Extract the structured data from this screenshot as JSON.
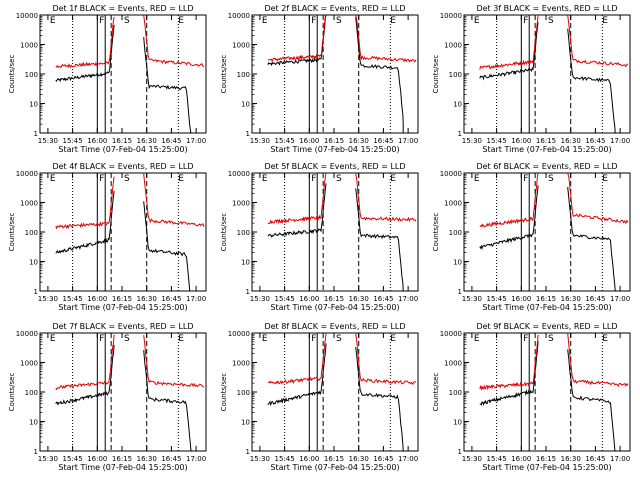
{
  "colors": {
    "events": "#000000",
    "lld": "#e00000",
    "frame": "#000000"
  },
  "chart_data": [
    {
      "type": "line",
      "title": "Det 1f BLACK = Events, RED = LLD",
      "xlabel": "Start Time (07-Feb-04 15:25:00)",
      "ylabel": "Counts/sec",
      "yscale": "log",
      "ylim": [
        1,
        10000
      ],
      "xticks": [
        "15:30",
        "15:45",
        "16:00",
        "16:15",
        "16:30",
        "16:45",
        "17:00"
      ],
      "yticks": [
        "1",
        "10",
        "100",
        "1000",
        "10000"
      ],
      "region_marks": [
        {
          "label": "E",
          "x_min": 15.55
        },
        {
          "label": "F",
          "x_min": 16.05
        },
        {
          "label": "S",
          "x_min": 16.3
        },
        {
          "label": "E",
          "x_min": 16.85
        }
      ],
      "series": [
        {
          "name": "Events",
          "color": "#000000",
          "base": 60,
          "pre_end": 115,
          "post_start": 40,
          "post_end": 30
        },
        {
          "name": "LLD",
          "color": "#e00000",
          "base": 180,
          "pre_end": 240,
          "post_start": 300,
          "post_end": 200
        }
      ]
    },
    {
      "type": "line",
      "title": "Det 2f BLACK = Events, RED = LLD",
      "xlabel": "Start Time (07-Feb-04 15:25:00)",
      "ylabel": "Counts/sec",
      "yscale": "log",
      "ylim": [
        1,
        10000
      ],
      "xticks": [
        "15:30",
        "15:45",
        "16:00",
        "16:15",
        "16:30",
        "16:45",
        "17:00"
      ],
      "yticks": [
        "1",
        "10",
        "100",
        "1000",
        "10000"
      ],
      "region_marks": [
        {
          "label": "E",
          "x_min": 15.55
        },
        {
          "label": "F",
          "x_min": 16.05
        },
        {
          "label": "S",
          "x_min": 16.3
        },
        {
          "label": "E",
          "x_min": 16.85
        }
      ],
      "series": [
        {
          "name": "Events",
          "color": "#000000",
          "base": 220,
          "pre_end": 320,
          "post_start": 200,
          "post_end": 150
        },
        {
          "name": "LLD",
          "color": "#e00000",
          "base": 300,
          "pre_end": 420,
          "post_start": 380,
          "post_end": 280
        }
      ]
    },
    {
      "type": "line",
      "title": "Det 3f BLACK = Events, RED = LLD",
      "xlabel": "Start Time (07-Feb-04 15:25:00)",
      "ylabel": "Counts/sec",
      "yscale": "log",
      "ylim": [
        1,
        10000
      ],
      "xticks": [
        "15:30",
        "15:45",
        "16:00",
        "16:15",
        "16:30",
        "16:45",
        "17:00"
      ],
      "yticks": [
        "1",
        "10",
        "100",
        "1000",
        "10000"
      ],
      "region_marks": [
        {
          "label": "E",
          "x_min": 15.55
        },
        {
          "label": "F",
          "x_min": 16.05
        },
        {
          "label": "S",
          "x_min": 16.3
        },
        {
          "label": "E",
          "x_min": 16.85
        }
      ],
      "series": [
        {
          "name": "Events",
          "color": "#000000",
          "base": 75,
          "pre_end": 150,
          "post_start": 80,
          "post_end": 50
        },
        {
          "name": "LLD",
          "color": "#e00000",
          "base": 160,
          "pre_end": 280,
          "post_start": 300,
          "post_end": 200
        }
      ]
    },
    {
      "type": "line",
      "title": "Det 4f BLACK = Events, RED = LLD",
      "xlabel": "Start Time (07-Feb-04 15:25:00)",
      "ylabel": "Counts/sec",
      "yscale": "log",
      "ylim": [
        1,
        10000
      ],
      "xticks": [
        "15:30",
        "15:45",
        "16:00",
        "16:15",
        "16:30",
        "16:45",
        "17:00"
      ],
      "yticks": [
        "1",
        "10",
        "100",
        "1000",
        "10000"
      ],
      "region_marks": [
        {
          "label": "E",
          "x_min": 15.55
        },
        {
          "label": "F",
          "x_min": 16.05
        },
        {
          "label": "S",
          "x_min": 16.3
        },
        {
          "label": "E",
          "x_min": 16.85
        }
      ],
      "series": [
        {
          "name": "Events",
          "color": "#000000",
          "base": 20,
          "pre_end": 60,
          "post_start": 25,
          "post_end": 15
        },
        {
          "name": "LLD",
          "color": "#e00000",
          "base": 150,
          "pre_end": 200,
          "post_start": 260,
          "post_end": 170
        }
      ]
    },
    {
      "type": "line",
      "title": "Det 5f BLACK = Events, RED = LLD",
      "xlabel": "Start Time (07-Feb-04 15:25:00)",
      "ylabel": "Counts/sec",
      "yscale": "log",
      "ylim": [
        1,
        10000
      ],
      "xticks": [
        "15:30",
        "15:45",
        "16:00",
        "16:15",
        "16:30",
        "16:45",
        "17:00"
      ],
      "yticks": [
        "1",
        "10",
        "100",
        "1000",
        "10000"
      ],
      "region_marks": [
        {
          "label": "E",
          "x_min": 15.55
        },
        {
          "label": "F",
          "x_min": 16.05
        },
        {
          "label": "S",
          "x_min": 16.3
        },
        {
          "label": "E",
          "x_min": 16.85
        }
      ],
      "series": [
        {
          "name": "Events",
          "color": "#000000",
          "base": 75,
          "pre_end": 120,
          "post_start": 80,
          "post_end": 60
        },
        {
          "name": "LLD",
          "color": "#e00000",
          "base": 220,
          "pre_end": 320,
          "post_start": 300,
          "post_end": 260
        }
      ]
    },
    {
      "type": "line",
      "title": "Det 6f BLACK = Events, RED = LLD",
      "xlabel": "Start Time (07-Feb-04 15:25:00)",
      "ylabel": "Counts/sec",
      "yscale": "log",
      "ylim": [
        1,
        10000
      ],
      "xticks": [
        "15:30",
        "15:45",
        "16:00",
        "16:15",
        "16:30",
        "16:45",
        "17:00"
      ],
      "yticks": [
        "1",
        "10",
        "100",
        "1000",
        "10000"
      ],
      "region_marks": [
        {
          "label": "E",
          "x_min": 15.55
        },
        {
          "label": "F",
          "x_min": 16.05
        },
        {
          "label": "S",
          "x_min": 16.3
        },
        {
          "label": "E",
          "x_min": 16.85
        }
      ],
      "series": [
        {
          "name": "Events",
          "color": "#000000",
          "base": 30,
          "pre_end": 90,
          "post_start": 80,
          "post_end": 50
        },
        {
          "name": "LLD",
          "color": "#e00000",
          "base": 160,
          "pre_end": 300,
          "post_start": 400,
          "post_end": 220
        }
      ]
    },
    {
      "type": "line",
      "title": "Det 7f BLACK = Events, RED = LLD",
      "xlabel": "Start Time (07-Feb-04 15:25:00)",
      "ylabel": "Counts/sec",
      "yscale": "log",
      "ylim": [
        1,
        10000
      ],
      "xticks": [
        "15:30",
        "15:45",
        "16:00",
        "16:15",
        "16:30",
        "16:45",
        "17:00"
      ],
      "yticks": [
        "1",
        "10",
        "100",
        "1000",
        "10000"
      ],
      "region_marks": [
        {
          "label": "E",
          "x_min": 15.55
        },
        {
          "label": "F",
          "x_min": 16.05
        },
        {
          "label": "S",
          "x_min": 16.3
        },
        {
          "label": "E",
          "x_min": 16.85
        }
      ],
      "series": [
        {
          "name": "Events",
          "color": "#000000",
          "base": 40,
          "pre_end": 100,
          "post_start": 60,
          "post_end": 40
        },
        {
          "name": "LLD",
          "color": "#e00000",
          "base": 140,
          "pre_end": 220,
          "post_start": 220,
          "post_end": 160
        }
      ]
    },
    {
      "type": "line",
      "title": "Det 8f BLACK = Events, RED = LLD",
      "xlabel": "Start Time (07-Feb-04 15:25:00)",
      "ylabel": "Counts/sec",
      "yscale": "log",
      "ylim": [
        1,
        10000
      ],
      "xticks": [
        "15:30",
        "15:45",
        "16:00",
        "16:15",
        "16:30",
        "16:45",
        "17:00"
      ],
      "yticks": [
        "1",
        "10",
        "100",
        "1000",
        "10000"
      ],
      "region_marks": [
        {
          "label": "E",
          "x_min": 15.55
        },
        {
          "label": "F",
          "x_min": 16.05
        },
        {
          "label": "S",
          "x_min": 16.3
        },
        {
          "label": "E",
          "x_min": 16.85
        }
      ],
      "series": [
        {
          "name": "Events",
          "color": "#000000",
          "base": 40,
          "pre_end": 110,
          "post_start": 90,
          "post_end": 60
        },
        {
          "name": "LLD",
          "color": "#e00000",
          "base": 200,
          "pre_end": 300,
          "post_start": 260,
          "post_end": 200
        }
      ]
    },
    {
      "type": "line",
      "title": "Det 9f BLACK = Events, RED = LLD",
      "xlabel": "Start Time (07-Feb-04 15:25:00)",
      "ylabel": "Counts/sec",
      "yscale": "log",
      "ylim": [
        1,
        10000
      ],
      "xticks": [
        "15:30",
        "15:45",
        "16:00",
        "16:15",
        "16:30",
        "16:45",
        "17:00"
      ],
      "yticks": [
        "1",
        "10",
        "100",
        "1000",
        "10000"
      ],
      "region_marks": [
        {
          "label": "E",
          "x_min": 15.55
        },
        {
          "label": "F",
          "x_min": 16.05
        },
        {
          "label": "S",
          "x_min": 16.3
        },
        {
          "label": "E",
          "x_min": 16.85
        }
      ],
      "series": [
        {
          "name": "Events",
          "color": "#000000",
          "base": 40,
          "pre_end": 120,
          "post_start": 70,
          "post_end": 40
        },
        {
          "name": "LLD",
          "color": "#e00000",
          "base": 140,
          "pre_end": 200,
          "post_start": 240,
          "post_end": 170
        }
      ]
    }
  ]
}
